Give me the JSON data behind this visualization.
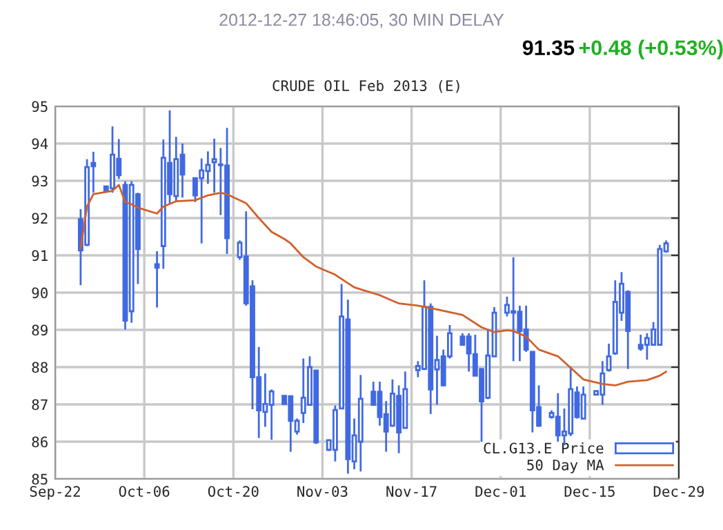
{
  "chart_data": {
    "type": "candlestick",
    "title": "CRUDE OIL Feb 2013 (E)",
    "annotations": [
      "2012-12-27 18:46:05, 30 MIN DELAY",
      "91.35",
      "+0.48 (+0.53%)"
    ],
    "xlim": [
      "2012-09-22",
      "2012-12-29"
    ],
    "xticks": [
      {
        "value": "2012-09-22",
        "label": "Sep-22"
      },
      {
        "value": "2012-10-06",
        "label": "Oct-06"
      },
      {
        "value": "2012-10-20",
        "label": "Oct-20"
      },
      {
        "value": "2012-11-03",
        "label": "Nov-03"
      },
      {
        "value": "2012-11-17",
        "label": "Nov-17"
      },
      {
        "value": "2012-12-01",
        "label": "Dec-01"
      },
      {
        "value": "2012-12-15",
        "label": "Dec-15"
      },
      {
        "value": "2012-12-29",
        "label": "Dec-29"
      }
    ],
    "ylim": [
      85,
      95
    ],
    "yticks": [
      85,
      86,
      87,
      88,
      89,
      90,
      91,
      92,
      93,
      94,
      95
    ],
    "grid": true,
    "legend": "bottom right",
    "series": [
      {
        "name": "CL.G13.E Price",
        "color": "#4169e1",
        "x": [
          "2012-09-26",
          "2012-09-27",
          "2012-09-28",
          "2012-09-30",
          "2012-10-01",
          "2012-10-02",
          "2012-10-03",
          "2012-10-04",
          "2012-10-05",
          "2012-10-08",
          "2012-10-09",
          "2012-10-10",
          "2012-10-11",
          "2012-10-12",
          "2012-10-14",
          "2012-10-15",
          "2012-10-16",
          "2012-10-17",
          "2012-10-18",
          "2012-10-19",
          "2012-10-21",
          "2012-10-22",
          "2012-10-23",
          "2012-10-24",
          "2012-10-25",
          "2012-10-26",
          "2012-10-28",
          "2012-10-29",
          "2012-10-30",
          "2012-10-31",
          "2012-11-01",
          "2012-11-02",
          "2012-11-04",
          "2012-11-05",
          "2012-11-06",
          "2012-11-07",
          "2012-11-08",
          "2012-11-09",
          "2012-11-11",
          "2012-11-12",
          "2012-11-13",
          "2012-11-14",
          "2012-11-15",
          "2012-11-16",
          "2012-11-18",
          "2012-11-19",
          "2012-11-20",
          "2012-11-21",
          "2012-11-22",
          "2012-11-23",
          "2012-11-25",
          "2012-11-26",
          "2012-11-27",
          "2012-11-28",
          "2012-11-29",
          "2012-11-30",
          "2012-12-02",
          "2012-12-03",
          "2012-12-04",
          "2012-12-05",
          "2012-12-06",
          "2012-12-07",
          "2012-12-09",
          "2012-12-10",
          "2012-12-11",
          "2012-12-12",
          "2012-12-13",
          "2012-12-14",
          "2012-12-16",
          "2012-12-17",
          "2012-12-18",
          "2012-12-19",
          "2012-12-20",
          "2012-12-21",
          "2012-12-23",
          "2012-12-24",
          "2012-12-25",
          "2012-12-26",
          "2012-12-27"
        ],
        "ohlc": [
          [
            91.97,
            92.24,
            90.2,
            91.13
          ],
          [
            91.28,
            93.58,
            91.25,
            93.37
          ],
          [
            93.48,
            93.78,
            92.68,
            93.39
          ],
          [
            92.85,
            92.85,
            92.68,
            92.71
          ],
          [
            92.8,
            94.46,
            92.68,
            93.7
          ],
          [
            93.59,
            94.12,
            93.05,
            93.15
          ],
          [
            92.89,
            92.99,
            89.01,
            89.25
          ],
          [
            89.5,
            92.99,
            89.19,
            92.89
          ],
          [
            92.64,
            92.68,
            90.23,
            91.17
          ],
          [
            90.76,
            91.11,
            89.6,
            90.67
          ],
          [
            91.25,
            94.11,
            90.64,
            93.62
          ],
          [
            93.48,
            94.89,
            92.37,
            92.64
          ],
          [
            92.59,
            94.18,
            92.45,
            93.58
          ],
          [
            93.7,
            94.0,
            92.55,
            93.17
          ],
          [
            93.07,
            93.07,
            92.43,
            92.61
          ],
          [
            93.07,
            93.6,
            91.32,
            93.28
          ],
          [
            93.26,
            93.79,
            92.92,
            93.43
          ],
          [
            93.5,
            94.13,
            92.68,
            93.58
          ],
          [
            93.44,
            93.88,
            92.08,
            93.42
          ],
          [
            93.41,
            94.42,
            91.04,
            91.46
          ],
          [
            90.95,
            91.4,
            90.88,
            91.34
          ],
          [
            90.97,
            92.18,
            89.65,
            89.71
          ],
          [
            90.17,
            90.33,
            86.87,
            87.73
          ],
          [
            87.73,
            88.54,
            86.1,
            86.84
          ],
          [
            86.8,
            87.83,
            86.4,
            87.01
          ],
          [
            86.99,
            87.4,
            86.05,
            87.35
          ],
          [
            87.23,
            87.24,
            86.99,
            87.01
          ],
          [
            87.22,
            87.24,
            85.73,
            86.56
          ],
          [
            86.27,
            86.62,
            86.19,
            86.56
          ],
          [
            86.77,
            88.23,
            86.5,
            87.18
          ],
          [
            86.99,
            88.29,
            86.99,
            88.0
          ],
          [
            87.91,
            87.91,
            85.94,
            85.98
          ],
          [
            85.78,
            86.06,
            85.75,
            86.04
          ],
          [
            85.78,
            86.97,
            85.47,
            86.85
          ],
          [
            86.89,
            90.23,
            86.89,
            89.36
          ],
          [
            89.28,
            89.81,
            85.14,
            85.53
          ],
          [
            85.47,
            86.62,
            85.26,
            86.17
          ],
          [
            86.0,
            87.79,
            85.2,
            87.15
          ],
          [
            87.34,
            87.61,
            86.99,
            86.99
          ],
          [
            87.34,
            87.61,
            86.43,
            86.66
          ],
          [
            86.74,
            87.09,
            85.73,
            86.27
          ],
          [
            86.43,
            87.67,
            86.4,
            87.29
          ],
          [
            87.23,
            87.51,
            85.69,
            86.25
          ],
          [
            86.37,
            87.88,
            86.35,
            87.41
          ],
          [
            87.92,
            88.16,
            87.73,
            88.03
          ],
          [
            87.95,
            90.33,
            87.92,
            89.62
          ],
          [
            89.62,
            89.71,
            86.74,
            87.4
          ],
          [
            87.94,
            88.84,
            86.99,
            88.19
          ],
          [
            88.29,
            88.47,
            87.48,
            87.51
          ],
          [
            88.29,
            89.13,
            88.23,
            88.91
          ],
          [
            88.82,
            88.91,
            88.6,
            88.6
          ],
          [
            88.82,
            88.91,
            87.88,
            88.37
          ],
          [
            88.35,
            88.87,
            87.77,
            87.77
          ],
          [
            87.94,
            87.98,
            86.0,
            87.08
          ],
          [
            87.18,
            88.99,
            87.14,
            88.31
          ],
          [
            88.29,
            89.61,
            88.29,
            89.46
          ],
          [
            89.46,
            89.89,
            89.36,
            89.67
          ],
          [
            89.5,
            90.95,
            88.16,
            89.46
          ],
          [
            89.49,
            89.65,
            88.16,
            88.97
          ],
          [
            89.01,
            89.65,
            88.41,
            88.47
          ],
          [
            88.41,
            88.41,
            86.25,
            86.84
          ],
          [
            86.93,
            87.51,
            86.4,
            86.43
          ],
          [
            86.66,
            86.84,
            86.62,
            86.77
          ],
          [
            86.67,
            87.3,
            86.0,
            86.17
          ],
          [
            86.17,
            86.89,
            85.9,
            86.27
          ],
          [
            86.22,
            88.02,
            86.15,
            87.41
          ],
          [
            87.32,
            87.48,
            86.62,
            86.66
          ],
          [
            86.62,
            87.48,
            86.62,
            87.26
          ],
          [
            87.26,
            87.36,
            87.24,
            87.36
          ],
          [
            87.26,
            88.16,
            86.99,
            87.83
          ],
          [
            87.92,
            88.63,
            87.88,
            88.29
          ],
          [
            88.37,
            90.33,
            88.33,
            89.75
          ],
          [
            89.46,
            90.55,
            89.24,
            90.24
          ],
          [
            90.02,
            90.06,
            87.95,
            88.97
          ],
          [
            88.6,
            88.87,
            88.44,
            88.5
          ],
          [
            88.6,
            88.91,
            88.2,
            88.78
          ],
          [
            88.6,
            89.21,
            88.6,
            89.01
          ],
          [
            88.6,
            91.28,
            88.6,
            91.17
          ],
          [
            91.11,
            91.4,
            91.07,
            91.32
          ]
        ]
      },
      {
        "type": "line",
        "name": "50 Day MA",
        "color": "#d0602a",
        "x": [
          "2012-09-26",
          "2012-09-27",
          "2012-09-28",
          "2012-09-30",
          "2012-10-01",
          "2012-10-02",
          "2012-10-03",
          "2012-10-04",
          "2012-10-05",
          "2012-10-08",
          "2012-10-09",
          "2012-10-11",
          "2012-10-14",
          "2012-10-16",
          "2012-10-18",
          "2012-10-19",
          "2012-10-22",
          "2012-10-24",
          "2012-10-26",
          "2012-10-28",
          "2012-10-29",
          "2012-10-31",
          "2012-11-02",
          "2012-11-05",
          "2012-11-08",
          "2012-11-12",
          "2012-11-15",
          "2012-11-18",
          "2012-11-21",
          "2012-11-25",
          "2012-11-28",
          "2012-11-30",
          "2012-12-02",
          "2012-12-03",
          "2012-12-05",
          "2012-12-07",
          "2012-12-10",
          "2012-12-12",
          "2012-12-14",
          "2012-12-17",
          "2012-12-19",
          "2012-12-21",
          "2012-12-24",
          "2012-12-26",
          "2012-12-27"
        ],
        "values": [
          91.19,
          92.31,
          92.64,
          92.7,
          92.73,
          92.89,
          92.43,
          92.37,
          92.28,
          92.12,
          92.31,
          92.45,
          92.48,
          92.61,
          92.68,
          92.64,
          92.4,
          92.0,
          91.63,
          91.44,
          91.32,
          90.95,
          90.7,
          90.48,
          90.14,
          89.93,
          89.71,
          89.65,
          89.55,
          89.4,
          89.07,
          88.94,
          88.99,
          88.97,
          88.82,
          88.47,
          88.29,
          87.98,
          87.67,
          87.55,
          87.51,
          87.61,
          87.65,
          87.77,
          87.88
        ]
      }
    ]
  }
}
